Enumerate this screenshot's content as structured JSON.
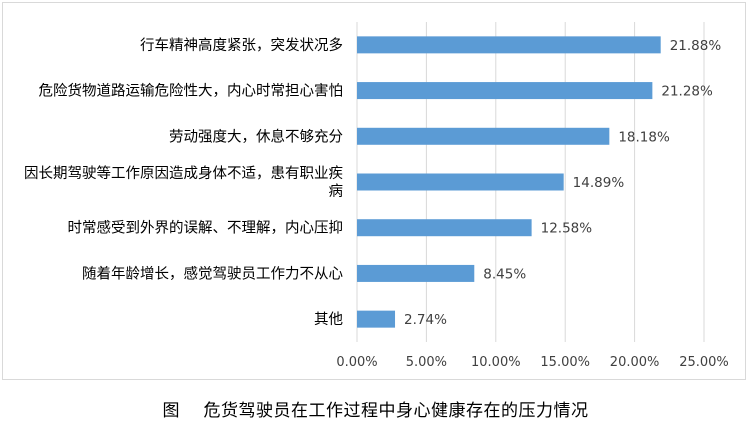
{
  "caption": "图    危货驾驶员在工作过程中身心健康存在的压力情况",
  "colors": {
    "bar": "#5b9bd5",
    "grid": "#d9d9d9",
    "label_text": "#404040",
    "frame": "#d9d9d9"
  },
  "chart_data": {
    "type": "bar",
    "orientation": "horizontal",
    "title": "",
    "xlabel": "",
    "ylabel": "",
    "categories": [
      "行车精神高度紧张，突发状况多",
      "危险货物道路运输危险性大，内心时常担心害怕",
      "劳动强度大，休息不够充分",
      "因长期驾驶等工作原因造成身体不适，患有职业疾病",
      "时常感受到外界的误解、不理解，内心压抑",
      "随着年龄增长，感觉驾驶员工作力不从心",
      "其他"
    ],
    "values": [
      21.88,
      21.28,
      18.18,
      14.89,
      12.58,
      8.45,
      2.74
    ],
    "value_labels": [
      "21.88%",
      "21.28%",
      "18.18%",
      "14.89%",
      "12.58%",
      "8.45%",
      "2.74%"
    ],
    "xlim": [
      0,
      25
    ],
    "x_ticks": [
      0,
      5,
      10,
      15,
      20,
      25
    ],
    "x_tick_labels": [
      "0.00%",
      "5.00%",
      "10.00%",
      "15.00%",
      "20.00%",
      "25.00%"
    ],
    "grid": true,
    "legend": "none"
  }
}
